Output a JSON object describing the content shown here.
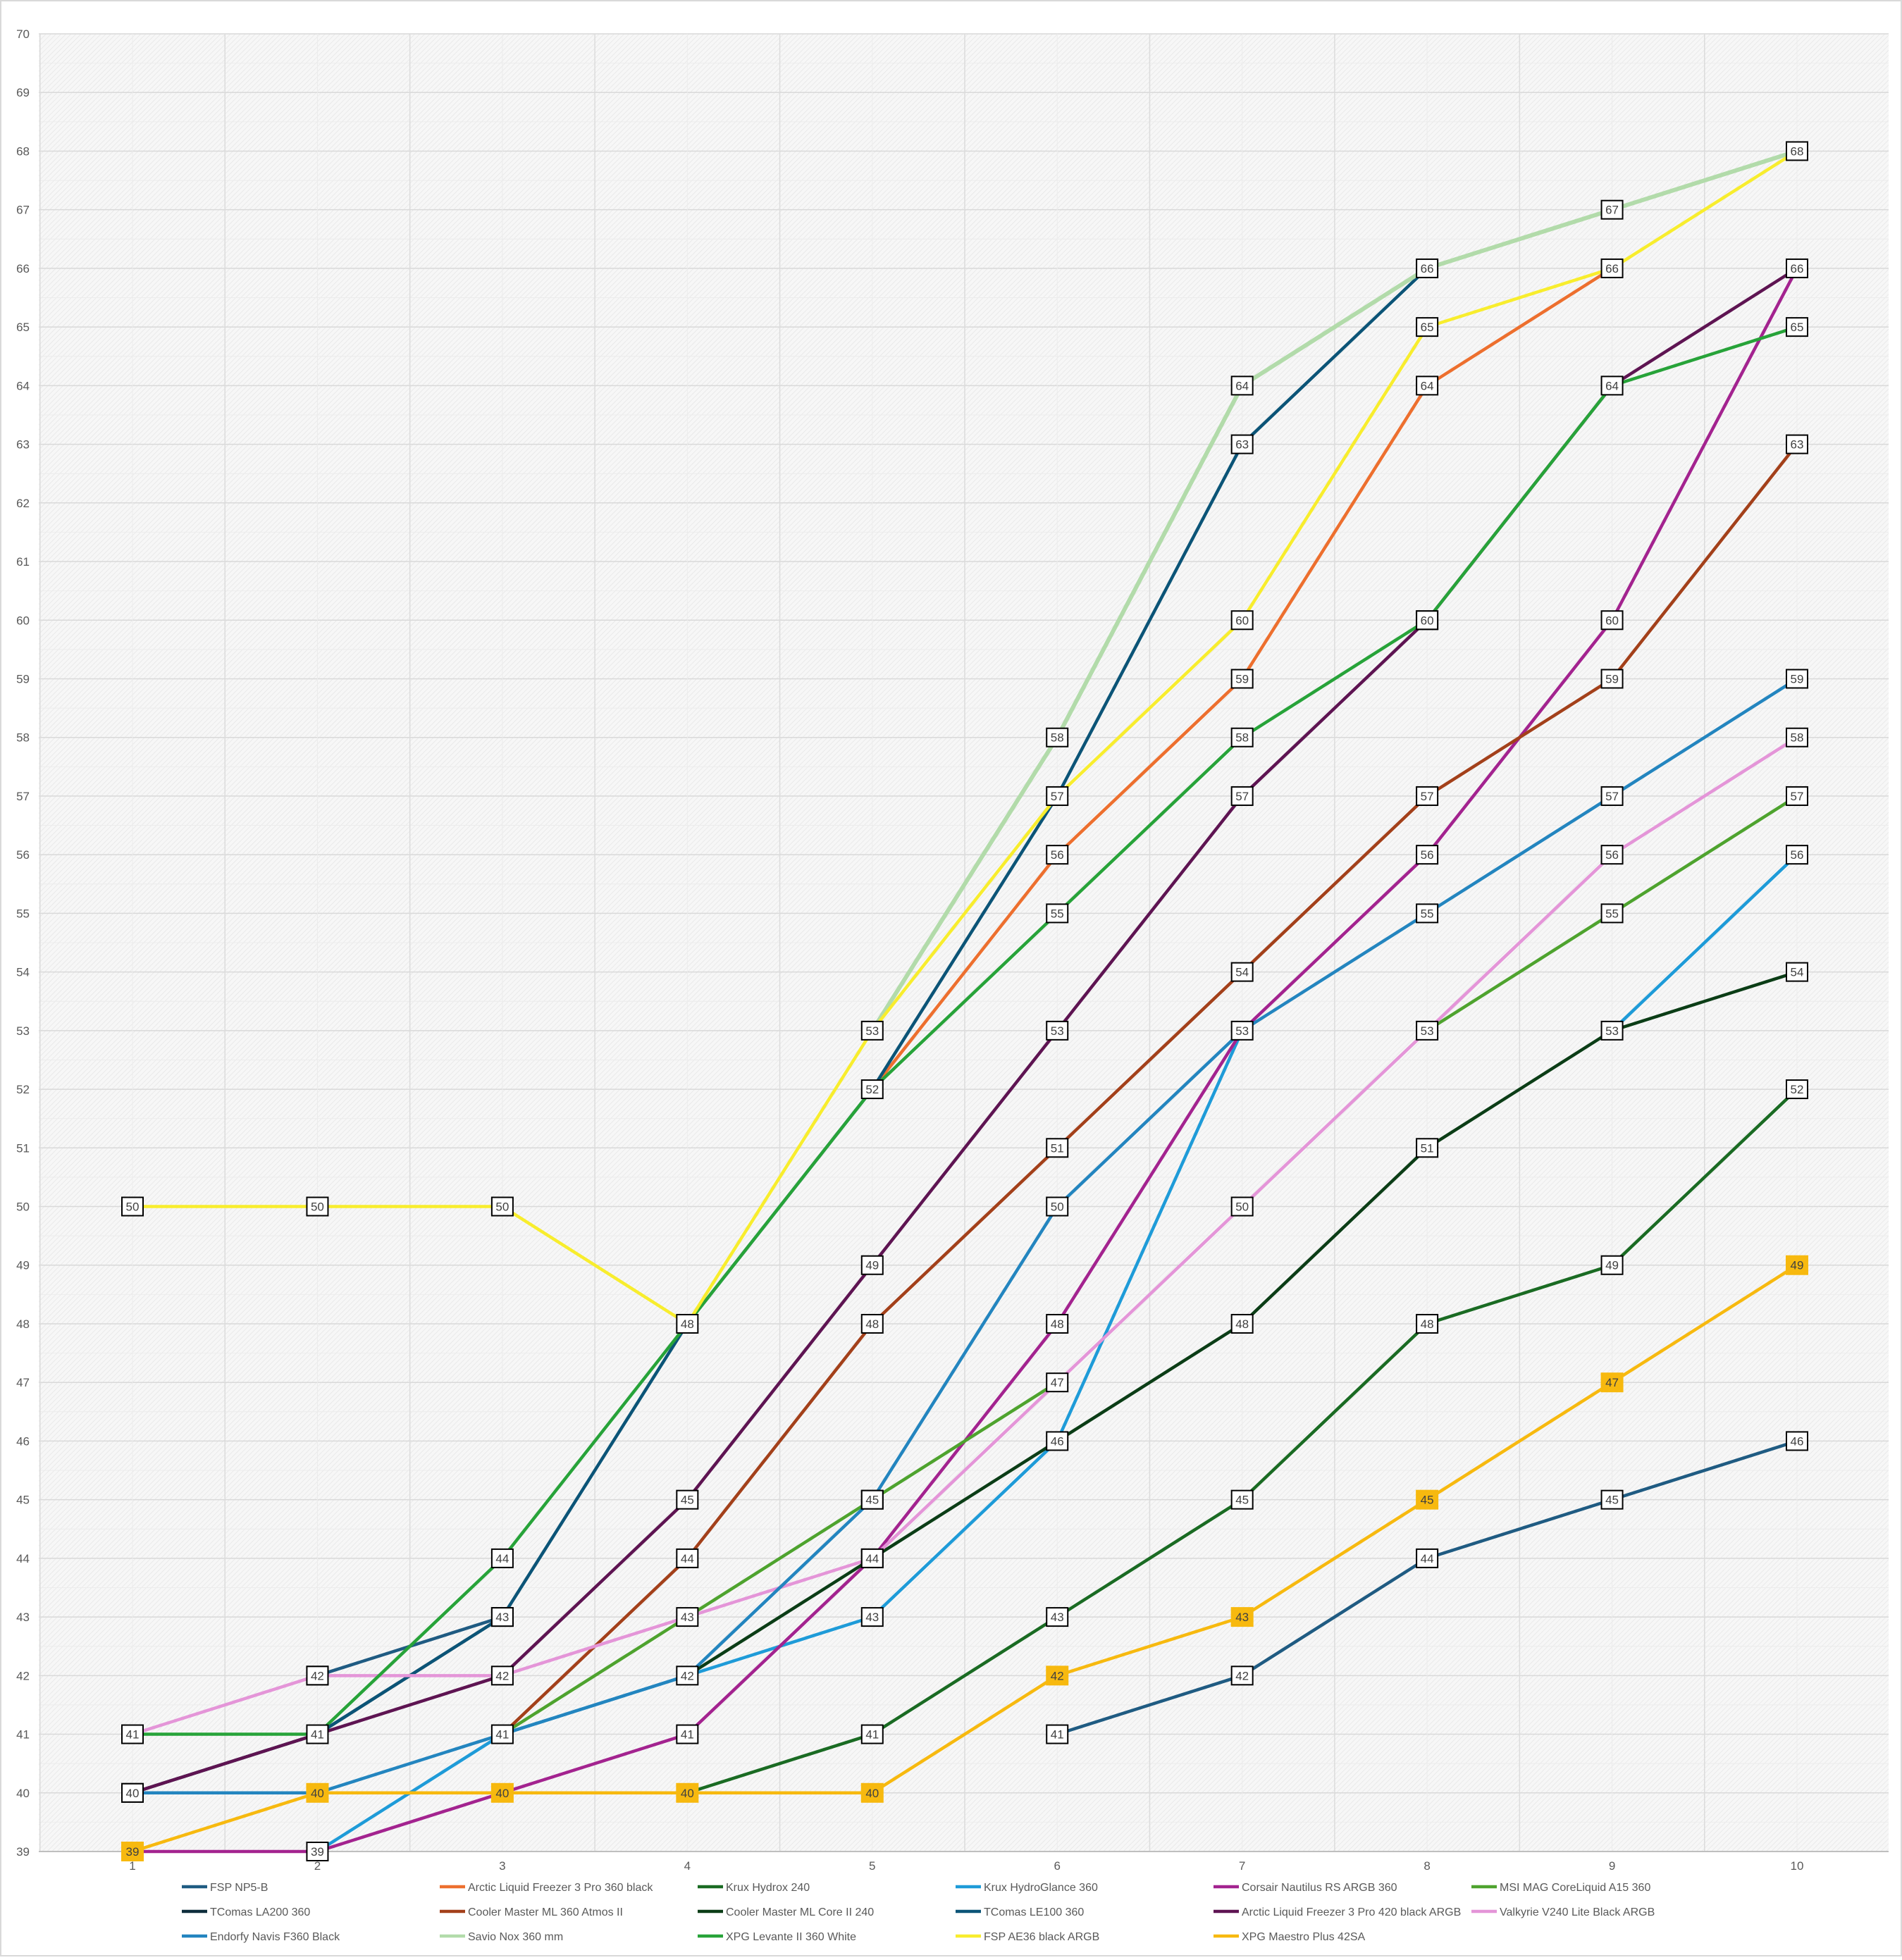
{
  "chart_data": {
    "type": "line",
    "title": "",
    "xlabel": "",
    "ylabel": "",
    "x": [
      1,
      2,
      3,
      4,
      5,
      6,
      7,
      8,
      9,
      10
    ],
    "xlim": [
      1,
      10
    ],
    "ylim": [
      39,
      70
    ],
    "y_ticks": [
      39,
      40,
      41,
      42,
      43,
      44,
      45,
      46,
      47,
      48,
      49,
      50,
      51,
      52,
      53,
      54,
      55,
      56,
      57,
      58,
      59,
      60,
      61,
      62,
      63,
      64,
      65,
      66,
      67,
      68,
      69,
      70
    ],
    "grid": true,
    "legend_position": "bottom",
    "series": [
      {
        "name": "FSP NP5-B",
        "color": "#1f5b82",
        "label_style": "box",
        "values": [
          null,
          42,
          43,
          null,
          null,
          41,
          42,
          44,
          45,
          46
        ],
        "labels": [
          false,
          true,
          true,
          false,
          false,
          true,
          true,
          true,
          true,
          true
        ]
      },
      {
        "name": "Arctic Liquid Freezer 3 Pro 360 black",
        "color": "#ed6f2e",
        "label_style": "box",
        "values": [
          null,
          null,
          null,
          null,
          52,
          56,
          59,
          64,
          66,
          null
        ],
        "labels": [
          false,
          false,
          false,
          false,
          false,
          true,
          true,
          true,
          true,
          false
        ]
      },
      {
        "name": "Krux Hydrox 240",
        "color": "#1a6b23",
        "label_style": "box",
        "values": [
          null,
          null,
          null,
          40,
          41,
          43,
          45,
          48,
          49,
          52
        ],
        "labels": [
          false,
          false,
          false,
          false,
          true,
          true,
          true,
          true,
          true,
          true
        ]
      },
      {
        "name": "Krux HydroGlance 360",
        "color": "#1e9bd8",
        "label_style": "box",
        "values": [
          null,
          39,
          41,
          42,
          43,
          46,
          53,
          null,
          53,
          56
        ],
        "labels": [
          false,
          false,
          false,
          false,
          true,
          false,
          false,
          false,
          false,
          true
        ]
      },
      {
        "name": "Corsair  Nautilus RS ARGB 360",
        "color": "#a3238f",
        "label_style": "box",
        "values": [
          39,
          39,
          40,
          41,
          44,
          48,
          53,
          56,
          60,
          66
        ],
        "labels": [
          false,
          true,
          false,
          true,
          false,
          true,
          false,
          true,
          true,
          false
        ]
      },
      {
        "name": "MSI MAG CoreLiquid A15 360",
        "color": "#4ea32e",
        "label_style": "box",
        "values": [
          null,
          null,
          41,
          43,
          45,
          47,
          null,
          53,
          55,
          57
        ],
        "labels": [
          false,
          false,
          false,
          false,
          true,
          false,
          false,
          false,
          true,
          true
        ]
      },
      {
        "name": "TComas LA200 360",
        "color": "#0e2d3c",
        "label_style": "box",
        "values": [
          40,
          41,
          43,
          null,
          null,
          null,
          null,
          null,
          null,
          null
        ],
        "labels": [
          true,
          false,
          false,
          false,
          false,
          false,
          false,
          false,
          false,
          false
        ]
      },
      {
        "name": "Cooler Master ML 360 Atmos II",
        "color": "#a3401a",
        "label_style": "box",
        "values": [
          null,
          null,
          41,
          44,
          48,
          51,
          54,
          57,
          59,
          63
        ],
        "labels": [
          false,
          false,
          false,
          true,
          true,
          true,
          true,
          true,
          true,
          true
        ]
      },
      {
        "name": "Cooler Master ML Core II 240",
        "color": "#0b3d16",
        "label_style": "box",
        "values": [
          40,
          40,
          null,
          42,
          44,
          46,
          48,
          51,
          53,
          54
        ],
        "labels": [
          false,
          false,
          false,
          false,
          true,
          true,
          true,
          true,
          true,
          true
        ]
      },
      {
        "name": "TComas LE100 360",
        "color": "#0b5477",
        "label_style": "box",
        "values": [
          null,
          41,
          43,
          48,
          52,
          57,
          63,
          66,
          null,
          null
        ],
        "labels": [
          false,
          false,
          true,
          false,
          false,
          true,
          true,
          false,
          false,
          false
        ]
      },
      {
        "name": "Arctic Liquid Freezer 3 Pro 420 black ARGB",
        "color": "#5e1452",
        "label_style": "box",
        "values": [
          40,
          41,
          42,
          45,
          49,
          53,
          57,
          60,
          64,
          66
        ],
        "labels": [
          false,
          true,
          false,
          true,
          true,
          true,
          true,
          true,
          false,
          true
        ]
      },
      {
        "name": "Valkyrie V240 Lite Black ARGB",
        "color": "#e495d8",
        "label_style": "box",
        "values": [
          41,
          42,
          42,
          43,
          44,
          47,
          50,
          53,
          56,
          58
        ],
        "labels": [
          true,
          true,
          true,
          true,
          true,
          true,
          true,
          true,
          true,
          true
        ]
      },
      {
        "name": "Endorfy Navis F360 Black",
        "color": "#2385bf",
        "label_style": "box",
        "values": [
          40,
          40,
          41,
          42,
          45,
          50,
          53,
          55,
          57,
          59
        ],
        "labels": [
          true,
          false,
          true,
          true,
          true,
          true,
          true,
          true,
          true,
          true
        ]
      },
      {
        "name": "Savio Nox 360 mm",
        "color": "#b2dbaa",
        "label_style": "box",
        "values": [
          null,
          null,
          null,
          null,
          53,
          58,
          64,
          66,
          67,
          68
        ],
        "labels": [
          false,
          false,
          false,
          false,
          false,
          true,
          true,
          true,
          true,
          true
        ]
      },
      {
        "name": "XPG Levante II 360 White",
        "color": "#27a339",
        "label_style": "box",
        "values": [
          41,
          41,
          44,
          48,
          52,
          55,
          58,
          60,
          64,
          65
        ],
        "labels": [
          false,
          false,
          true,
          false,
          true,
          true,
          true,
          true,
          true,
          true
        ]
      },
      {
        "name": "FSP AE36 black ARGB",
        "color": "#f8ed2d",
        "label_style": "box",
        "values": [
          50,
          50,
          50,
          48,
          53,
          57,
          60,
          65,
          66,
          68
        ],
        "labels": [
          true,
          true,
          true,
          true,
          true,
          false,
          true,
          true,
          false,
          false
        ]
      },
      {
        "name": "XPG Maestro Plus 42SA",
        "color": "#f7b90f",
        "label_style": "fill",
        "values": [
          39,
          40,
          40,
          40,
          40,
          42,
          43,
          45,
          47,
          49
        ],
        "labels": [
          true,
          true,
          true,
          true,
          true,
          true,
          true,
          true,
          true,
          true
        ]
      }
    ]
  }
}
